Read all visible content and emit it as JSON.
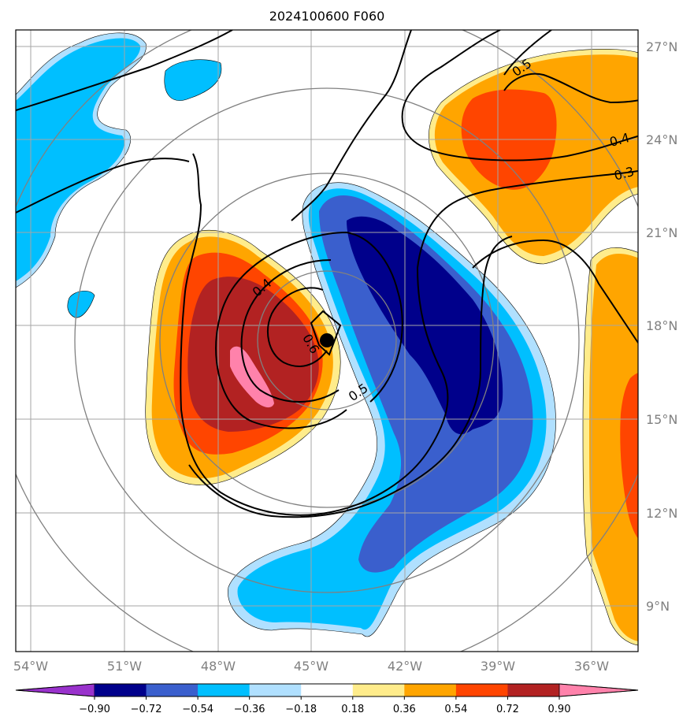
{
  "chart_data": {
    "type": "contour-map",
    "title": "2024100600 F060",
    "x_ticks": [
      "54°W",
      "51°W",
      "48°W",
      "45°W",
      "42°W",
      "39°W",
      "36°W"
    ],
    "y_ticks": [
      "27°N",
      "24°N",
      "21°N",
      "18°N",
      "15°N",
      "12°N",
      "9°N"
    ],
    "x_range": [
      "54.5°W",
      "34.5°W"
    ],
    "y_range": [
      "7.5°N",
      "27.5°N"
    ],
    "grid": true,
    "storm_center": {
      "lon": -44.5,
      "lat": 17.5
    },
    "range_rings": "concentric circles centred on storm",
    "colorbar": {
      "levels": [
        "−0.90",
        "−0.72",
        "−0.54",
        "−0.36",
        "−0.18",
        "0.18",
        "0.36",
        "0.54",
        "0.72",
        "0.90"
      ],
      "colors": [
        "#9932CC",
        "#00008B",
        "#3A5FCD",
        "#00BFFF",
        "#B0E0FF",
        "#FFFFFF",
        "#FFEC8B",
        "#FFA500",
        "#FF4500",
        "#B22222",
        "#FF82AB"
      ],
      "extend": "both"
    },
    "contour_labels": [
      "0.6",
      "0.5",
      "0.4",
      "0.5",
      "0.4",
      "0.3"
    ],
    "contour_line_values": [
      0.3,
      0.4,
      0.5,
      0.6
    ]
  }
}
